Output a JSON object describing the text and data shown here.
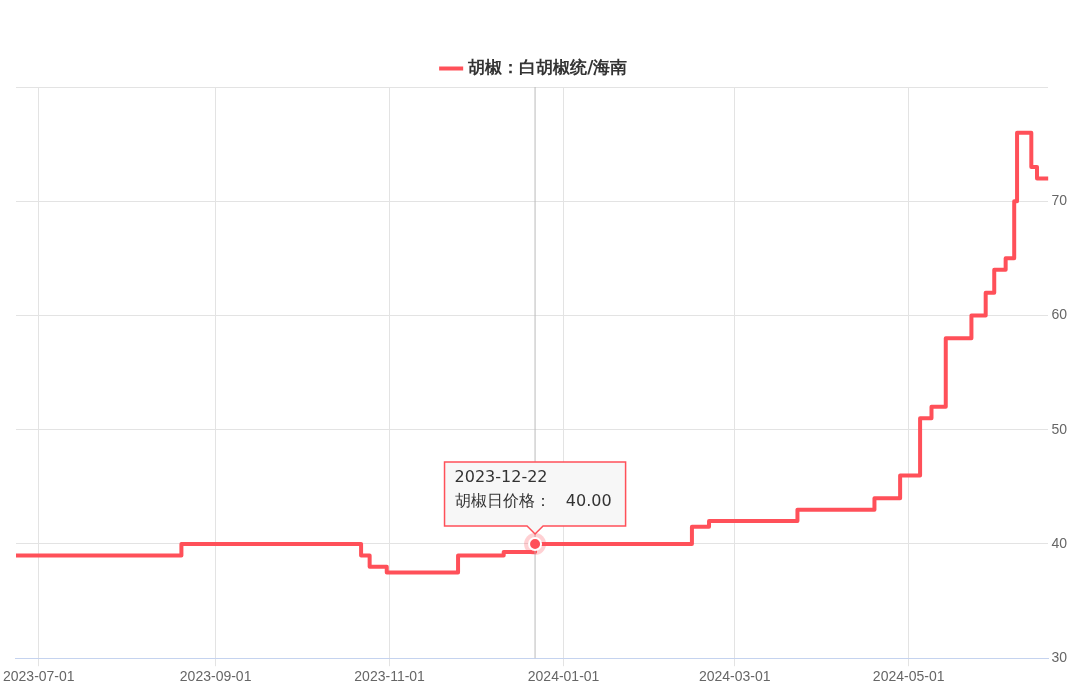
{
  "chart_data": {
    "type": "step",
    "legend": "top",
    "grid": true,
    "marker": "none",
    "line_style": "solid",
    "xlim": [
      "2023-06-23",
      "2024-06-19"
    ],
    "xticks": [
      "2023-07-01",
      "2023-09-01",
      "2023-11-01",
      "2024-01-01",
      "2024-03-01",
      "2024-05-01"
    ],
    "ylim": [
      30,
      80
    ],
    "yticks": [
      30,
      40,
      50,
      60,
      70,
      {
        "value": 80,
        "label": null
      }
    ],
    "series": [
      {
        "name": "胡椒：白胡椒统/海南",
        "color": "#ff5059",
        "x": [
          "2023-06-23",
          "2023-08-20",
          "2023-10-22",
          "2023-10-25",
          "2023-10-31",
          "2023-11-25",
          "2023-12-11",
          "2023-12-22",
          "2024-02-15",
          "2024-02-21",
          "2024-03-23",
          "2024-04-19",
          "2024-04-28",
          "2024-05-05",
          "2024-05-09",
          "2024-05-14",
          "2024-05-23",
          "2024-05-28",
          "2024-05-31",
          "2024-06-04",
          "2024-06-07",
          "2024-06-08",
          "2024-06-13",
          "2024-06-15",
          "2024-06-19"
        ],
        "values": [
          39,
          40,
          39,
          38,
          37.5,
          39,
          39.3,
          40,
          41.5,
          42,
          43,
          44,
          46,
          51,
          52,
          58,
          60,
          62,
          64,
          65,
          70,
          76,
          73,
          72,
          72
        ]
      }
    ],
    "ref_lines": [
      {
        "axis": "x",
        "value": "2023-12-22",
        "color": "#bbbbbb"
      }
    ],
    "annotations": [
      {
        "text": "2023-12-22\n胡椒日价格：   40.00",
        "x": "2023-12-22",
        "y": 40
      }
    ]
  }
}
